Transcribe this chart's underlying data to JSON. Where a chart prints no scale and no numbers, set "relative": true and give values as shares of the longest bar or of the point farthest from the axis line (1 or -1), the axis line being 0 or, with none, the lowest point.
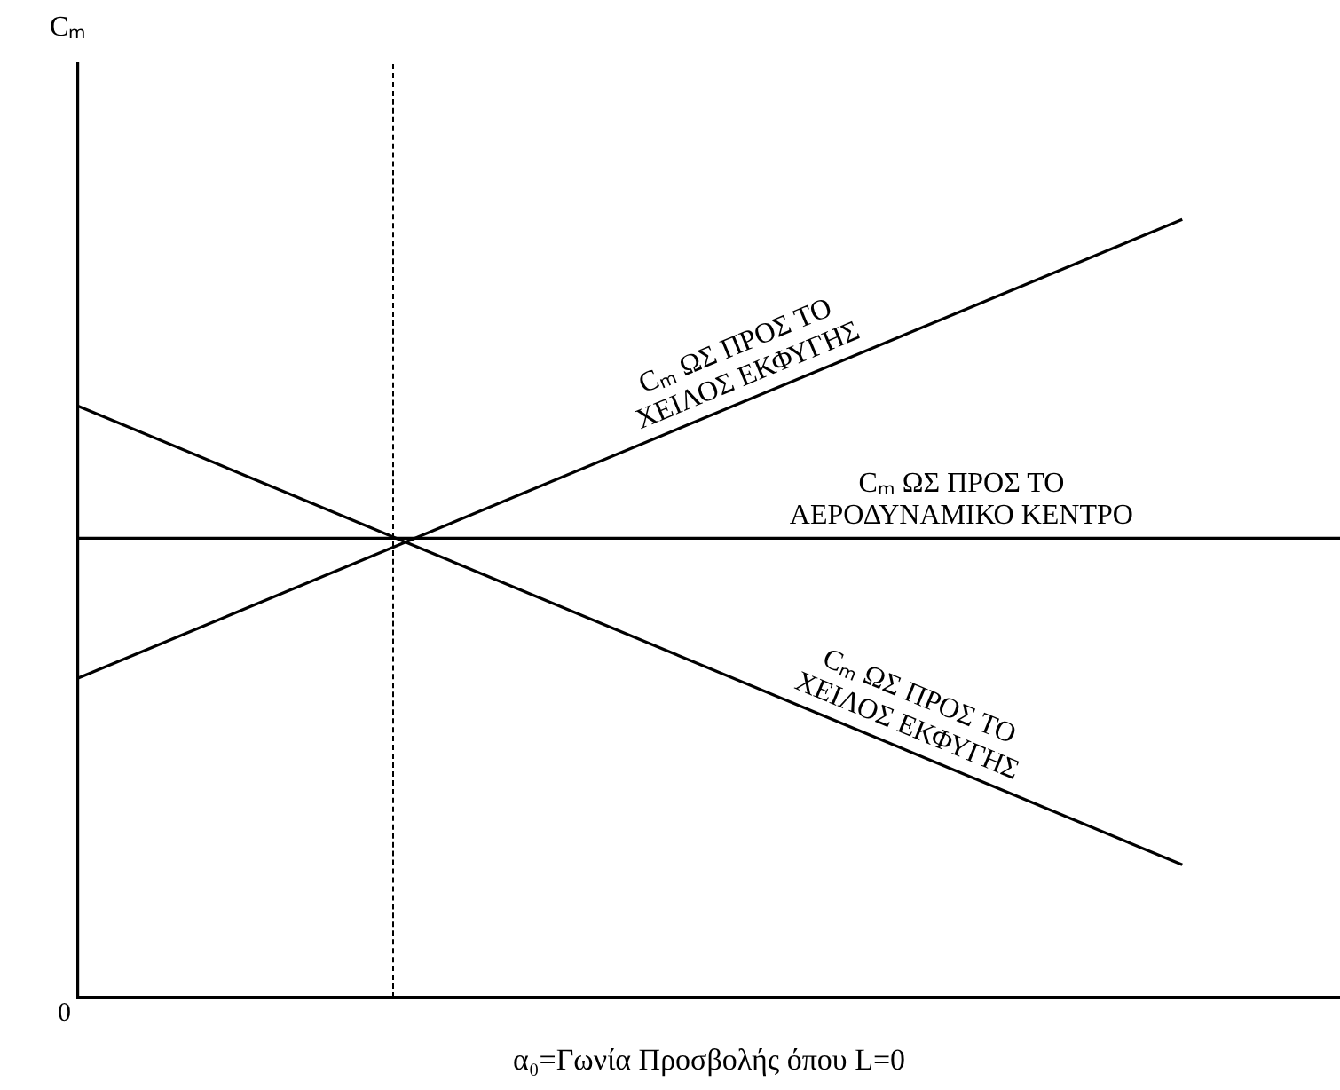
{
  "chart_data": {
    "type": "line",
    "relative": true,
    "xlabel": "α₀=Γωνία Προσβολής όπου L=0",
    "categories": [
      null,
      null,
      null,
      null,
      null,
      null,
      null,
      null,
      null
    ],
    "series": [
      {
        "name": "Cₘ ΩΣ ΠΡΟΣ ΤΟ ΧΕΙΛΟΣ ΕΚΦΥΓΗΣ",
        "color": "#000000",
        "values": [
          0.41,
          null,
          null,
          null,
          null,
          null,
          null,
          1,
          null
        ]
      },
      {
        "name": "Cₘ ΩΣ ΠΡΟΣ ΤΟ ΑΕΡΟΔΥΝΑΜΙΚΟ ΚΕΝΤΡΟ",
        "color": "#000000",
        "values": [
          0.59,
          null,
          null,
          null,
          null,
          null,
          null,
          null,
          0.59
        ]
      },
      {
        "name": "Cₘ ΩΣ ΠΡΟΣ ΤΟ ΧΕΙΛΟΣ ΕΚΦΥΓΗΣ",
        "color": "#000000",
        "values": [
          0.76,
          null,
          null,
          null,
          null,
          null,
          null,
          0.17,
          null
        ]
      }
    ],
    "annotations": [
      "Cₘ",
      "0"
    ],
    "grid": false,
    "legend": false,
    "marker": "none",
    "line_style": "solid"
  }
}
